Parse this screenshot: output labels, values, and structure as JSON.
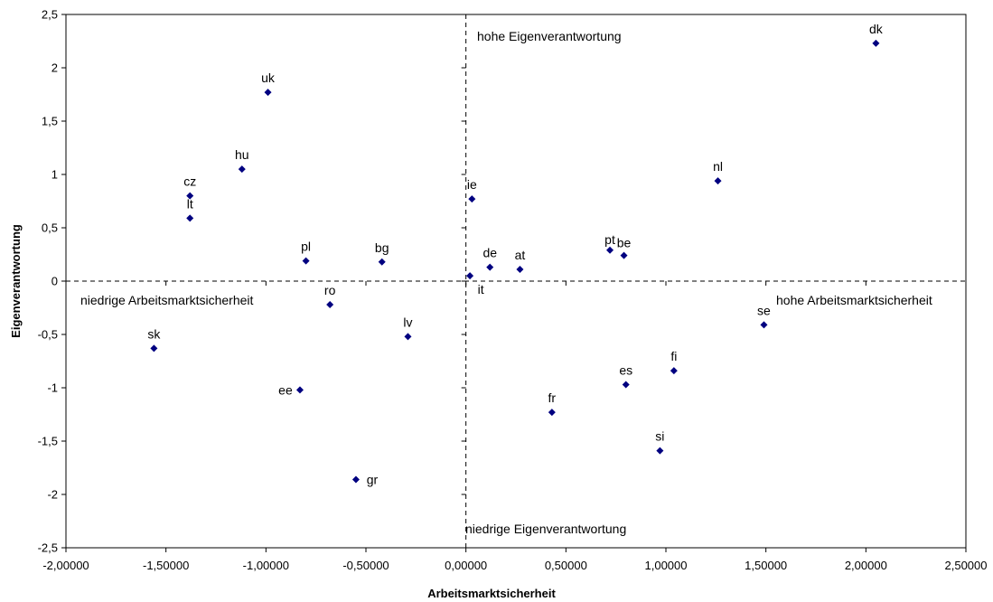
{
  "chart_data": {
    "type": "scatter",
    "title": "",
    "xlabel": "Arbeitsmarktsicherheit",
    "ylabel": "Eigenverantwortung",
    "xlim": [
      -2.0,
      2.5
    ],
    "ylim": [
      -2.5,
      2.5
    ],
    "x_ticks": [
      "-2,00000",
      "-1,50000",
      "-1,00000",
      "-0,50000",
      "0,00000",
      "0,50000",
      "1,00000",
      "1,50000",
      "2,00000",
      "2,50000"
    ],
    "y_ticks": [
      "2,5",
      "2",
      "1,5",
      "1",
      "0,5",
      "0",
      "-0,5",
      "-1",
      "-1,5",
      "-2",
      "-2,5"
    ],
    "grid": false,
    "legend": "none",
    "marker_color": "#000080",
    "quadrant_labels": {
      "top": "hohe Eigenverantwortung",
      "bottom": "niedrige Eigenverantwortung",
      "left": "niedrige Arbeitsmarktsicherheit",
      "right": "hohe Arbeitsmarktsicherheit"
    },
    "points": [
      {
        "label": "dk",
        "x": 2.05,
        "y": 2.23
      },
      {
        "label": "uk",
        "x": -0.99,
        "y": 1.77
      },
      {
        "label": "hu",
        "x": -1.12,
        "y": 1.05
      },
      {
        "label": "nl",
        "x": 1.26,
        "y": 0.94
      },
      {
        "label": "cz",
        "x": -1.38,
        "y": 0.8
      },
      {
        "label": "ie",
        "x": 0.03,
        "y": 0.77
      },
      {
        "label": "lt",
        "x": -1.38,
        "y": 0.59
      },
      {
        "label": "pt",
        "x": 0.72,
        "y": 0.29
      },
      {
        "label": "be",
        "x": 0.79,
        "y": 0.24
      },
      {
        "label": "pl",
        "x": -0.8,
        "y": 0.19
      },
      {
        "label": "bg",
        "x": -0.42,
        "y": 0.18
      },
      {
        "label": "de",
        "x": 0.12,
        "y": 0.13
      },
      {
        "label": "at",
        "x": 0.27,
        "y": 0.11
      },
      {
        "label": "it",
        "x": 0.02,
        "y": 0.05
      },
      {
        "label": "ro",
        "x": -0.68,
        "y": -0.22
      },
      {
        "label": "se",
        "x": 1.49,
        "y": -0.41
      },
      {
        "label": "lv",
        "x": -0.29,
        "y": -0.52
      },
      {
        "label": "sk",
        "x": -1.56,
        "y": -0.63
      },
      {
        "label": "fi",
        "x": 1.04,
        "y": -0.84
      },
      {
        "label": "es",
        "x": 0.8,
        "y": -0.97
      },
      {
        "label": "ee",
        "x": -0.83,
        "y": -1.02
      },
      {
        "label": "fr",
        "x": 0.43,
        "y": -1.23
      },
      {
        "label": "si",
        "x": 0.97,
        "y": -1.59
      },
      {
        "label": "gr",
        "x": -0.55,
        "y": -1.86
      }
    ]
  }
}
